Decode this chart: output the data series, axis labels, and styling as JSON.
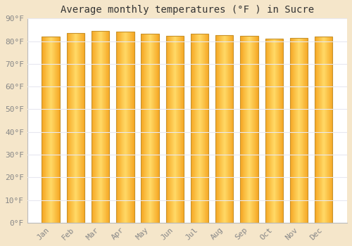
{
  "months": [
    "Jan",
    "Feb",
    "Mar",
    "Apr",
    "May",
    "Jun",
    "Jul",
    "Aug",
    "Sep",
    "Oct",
    "Nov",
    "Dec"
  ],
  "values": [
    82,
    83.5,
    84.5,
    84.2,
    83.2,
    82.2,
    83.2,
    82.8,
    82.3,
    81.0,
    81.5,
    82.0
  ],
  "title": "Average monthly temperatures (°F ) in Sucre",
  "ylim": [
    0,
    90
  ],
  "yticks": [
    0,
    10,
    20,
    30,
    40,
    50,
    60,
    70,
    80,
    90
  ],
  "ytick_labels": [
    "0°F",
    "10°F",
    "20°F",
    "30°F",
    "40°F",
    "50°F",
    "60°F",
    "70°F",
    "80°F",
    "90°F"
  ],
  "bg_outer": "#f5e6ca",
  "bg_plot": "#ffffff",
  "grid_color": "#e8e8f0",
  "bar_color_center": "#FFD966",
  "bar_color_edge": "#F5A623",
  "bar_border_color": "#C8922A",
  "title_fontsize": 10,
  "tick_fontsize": 8,
  "bar_width": 0.72
}
